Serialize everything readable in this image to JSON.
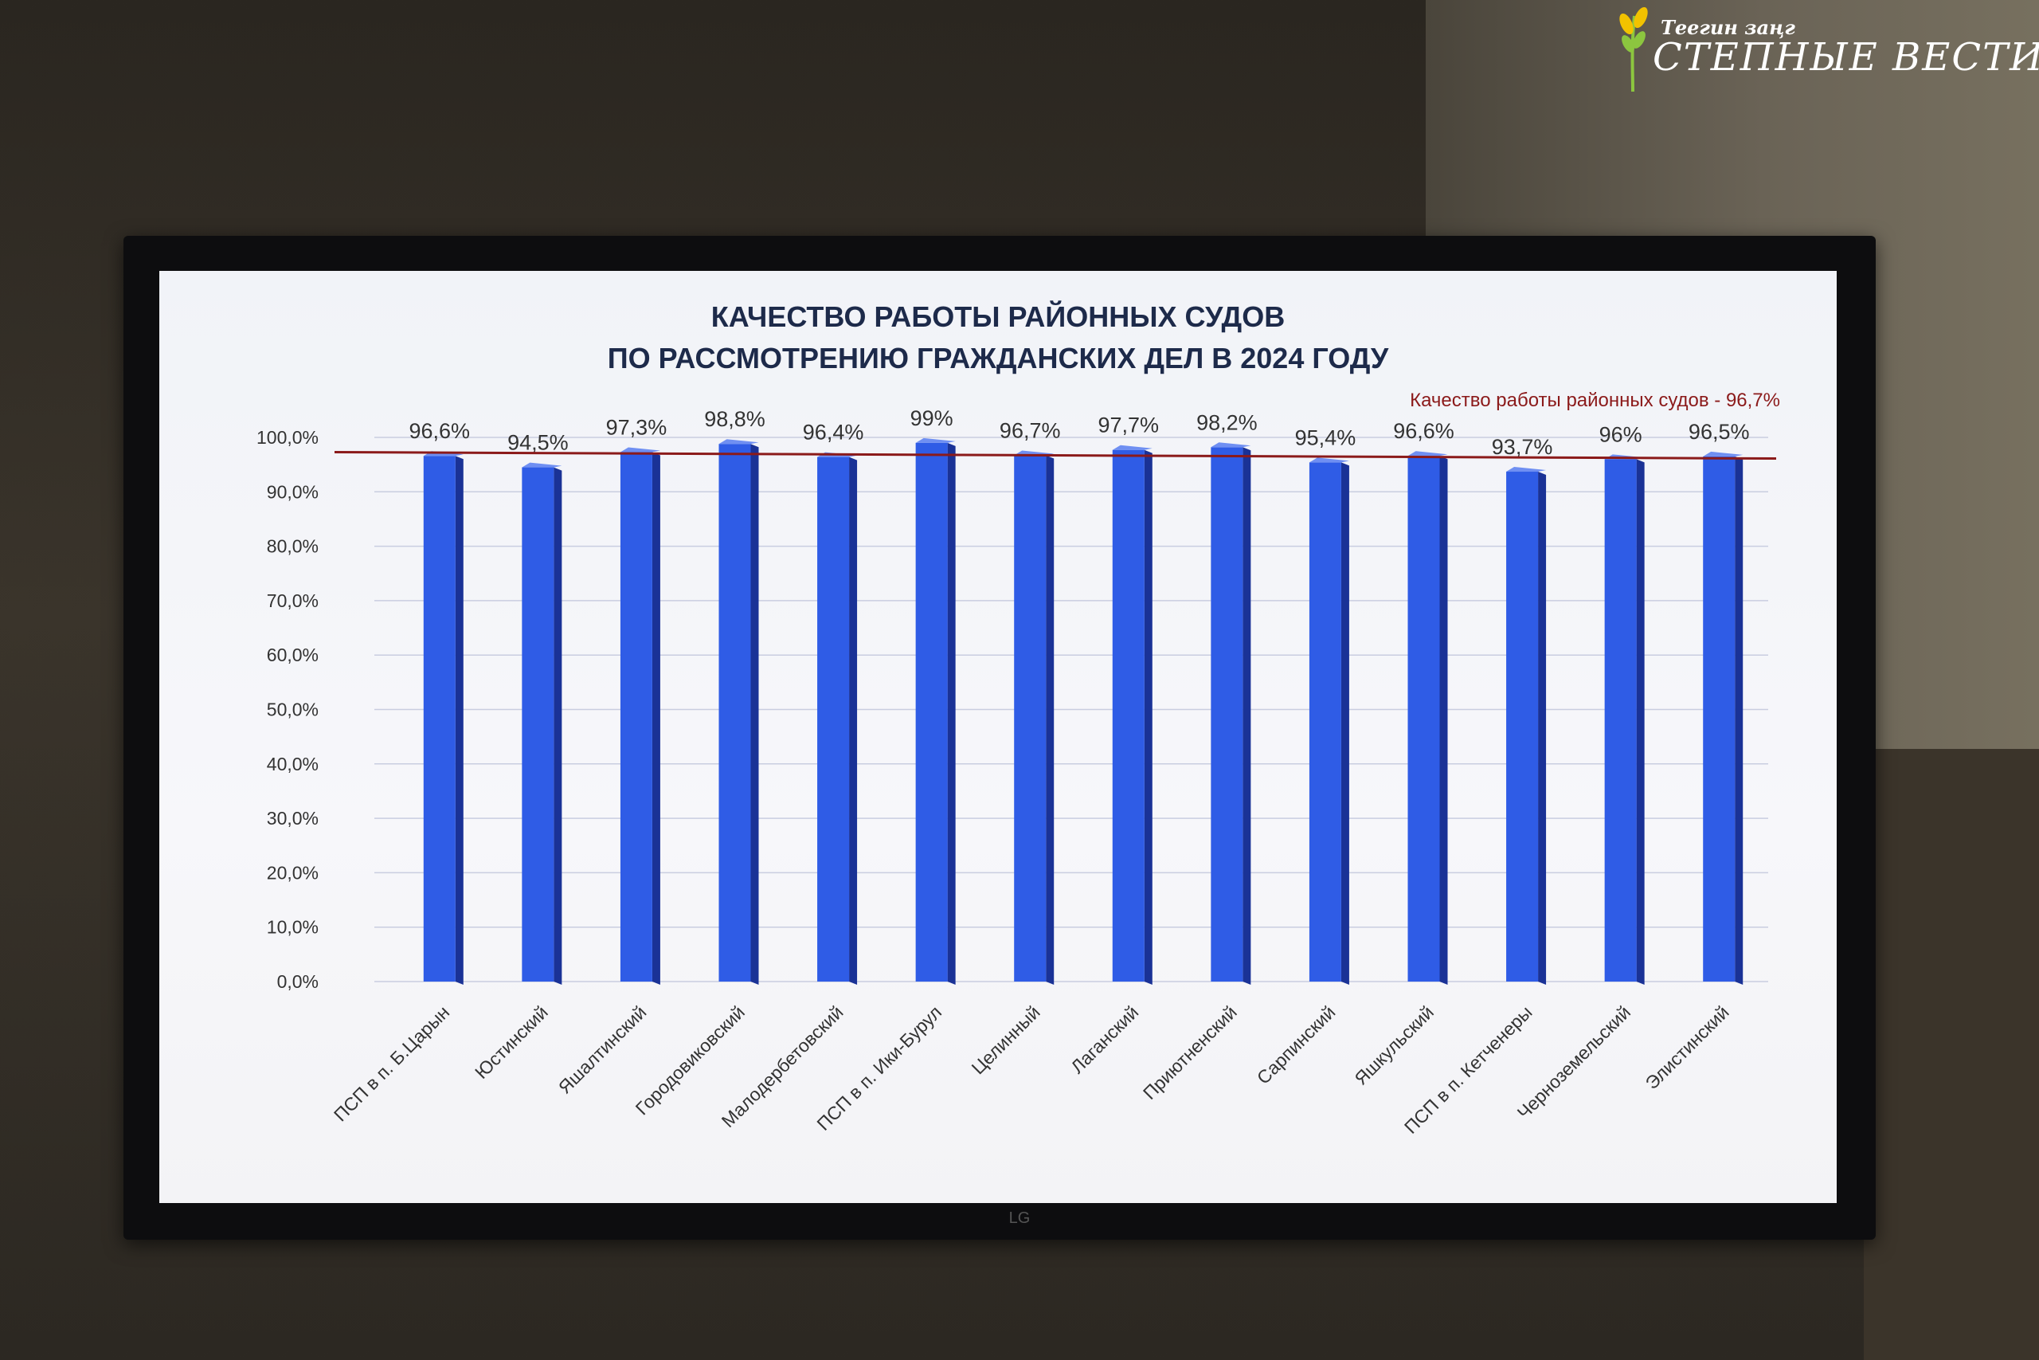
{
  "branding": {
    "subtitle": "Теегин заңг",
    "name": "СТЕПНЫЕ ВЕСТИ"
  },
  "tv": {
    "brand": "LG"
  },
  "chart_data": {
    "type": "bar",
    "title_lines": [
      "КАЧЕСТВО РАБОТЫ РАЙОННЫХ СУДОВ",
      "ПО РАССМОТРЕНИЮ ГРАЖДАНСКИХ ДЕЛ В 2024 ГОДУ"
    ],
    "reference_line": {
      "label": "Качество работы районных судов - 96,7%",
      "value": 96.7,
      "color": "#8b1a1a"
    },
    "categories": [
      "ПСП в п. Б.Царын",
      "Юстинский",
      "Яшалтинский",
      "Городовиковский",
      "Малодербетовский",
      "ПСП в п. Ики-Бурул",
      "Целинный",
      "Лаганский",
      "Приютненский",
      "Сарпинский",
      "Яшкульский",
      "ПСП в п. Кетченеры",
      "Черноземельский",
      "Элистинский"
    ],
    "values": [
      96.6,
      94.5,
      97.3,
      98.8,
      96.4,
      99.0,
      96.7,
      97.7,
      98.2,
      95.4,
      96.6,
      93.7,
      96.0,
      96.5
    ],
    "data_labels": [
      "96,6%",
      "94,5%",
      "97,3%",
      "98,8%",
      "96,4%",
      "99%",
      "96,7%",
      "97,7%",
      "98,2%",
      "95,4%",
      "96,6%",
      "93,7%",
      "96%",
      "96,5%"
    ],
    "y_ticks": [
      "0,0%",
      "10,0%",
      "20,0%",
      "30,0%",
      "40,0%",
      "50,0%",
      "60,0%",
      "70,0%",
      "80,0%",
      "90,0%",
      "100,0%"
    ],
    "ylim": [
      0,
      100
    ],
    "grid": true,
    "bar_color": "#2f5ce6",
    "bar_side_color": "#1a3296"
  }
}
